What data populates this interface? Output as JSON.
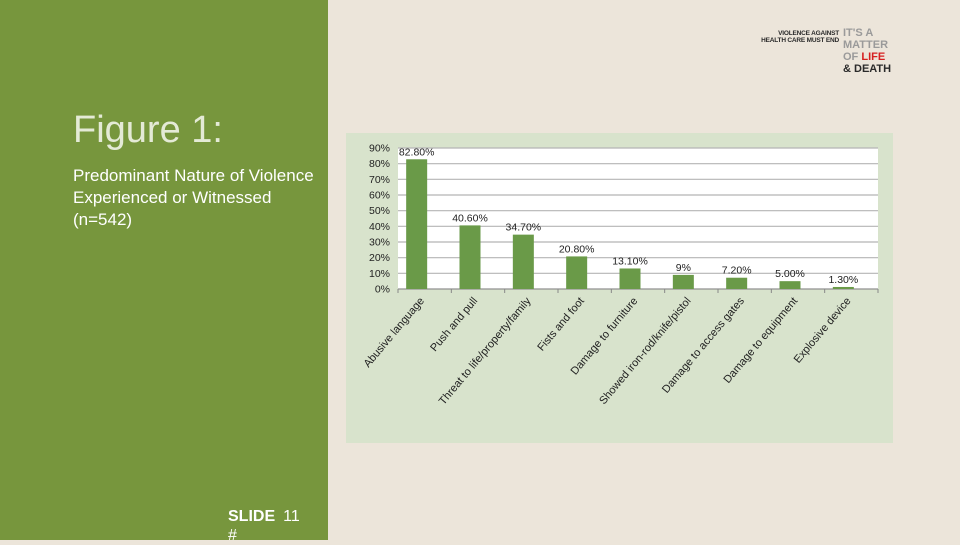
{
  "slide": {
    "title": "Figure 1:",
    "subtitle": "Predominant Nature of Violence Experienced or Witnessed (n=542)",
    "slide_label": "SLIDE",
    "slide_number": "11",
    "slide_hash": "#"
  },
  "logo": {
    "line1": "VIOLENCE AGAINST",
    "line2": "HEALTH CARE MUST END",
    "tag1": "IT'S A",
    "tag2": "MATTER",
    "tag3": "OF",
    "tag4": "LIFE",
    "tag5": "& DEATH"
  },
  "colors": {
    "panel": "#77963d",
    "bar": "#6a9a48",
    "chart_bg": "#d8e3cc"
  },
  "chart_data": {
    "type": "bar",
    "categories": [
      "Abusive language",
      "Push and pull",
      "Threat to life/property/family",
      "Fists and foot",
      "Damage to furniture",
      "Showed iron-rod/knife/pistol",
      "Damage to access gates",
      "Damage to equipment",
      "Explosive device"
    ],
    "values": [
      82.8,
      40.6,
      34.7,
      20.8,
      13.1,
      9,
      7.2,
      5.0,
      1.3
    ],
    "data_labels": [
      "82.80%",
      "40.60%",
      "34.70%",
      "20.80%",
      "13.10%",
      "9%",
      "7.20%",
      "5.00%",
      "1.30%"
    ],
    "y_ticks": [
      "0%",
      "10%",
      "20%",
      "30%",
      "40%",
      "50%",
      "60%",
      "70%",
      "80%",
      "90%"
    ],
    "ylim": [
      0,
      90
    ],
    "grid": true
  }
}
